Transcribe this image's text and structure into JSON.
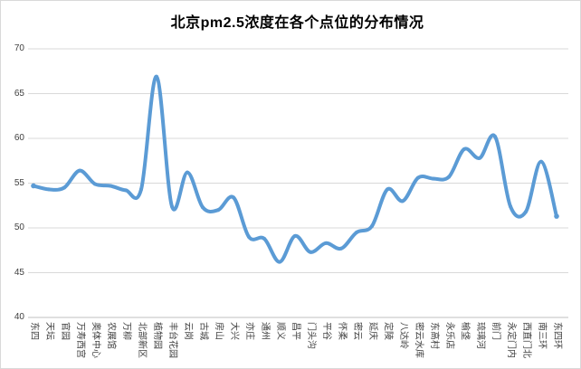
{
  "chart": {
    "title": "北京pm2.5浓度在各个点位的分布情况",
    "colors": {
      "line": "#5B9BD5",
      "gridline": "#D9D9D9",
      "axis_line": "#BFBFBF",
      "tick_text": "#404040",
      "title_text": "#000000",
      "background": "#FFFFFF"
    }
  },
  "chart_data": {
    "type": "line",
    "title": "北京pm2.5浓度在各个点位的分布情况",
    "smooth": true,
    "legend": false,
    "grid": true,
    "xlabel": "",
    "ylabel": "",
    "ylim": [
      40,
      70
    ],
    "y_tick_step": 5,
    "y_ticks": [
      40,
      45,
      50,
      55,
      60,
      65,
      70
    ],
    "categories": [
      "东四",
      "天坛",
      "官园",
      "万寿西宫",
      "奥体中心",
      "农展馆",
      "万柳",
      "北部新区",
      "植物园",
      "丰台花园",
      "云岗",
      "古城",
      "房山",
      "大兴",
      "亦庄",
      "通州",
      "顺义",
      "昌平",
      "门头沟",
      "平谷",
      "怀柔",
      "密云",
      "延庆",
      "定陵",
      "八达岭",
      "密云水库",
      "东高村",
      "永乐店",
      "榆垡",
      "琉璃河",
      "前门",
      "永定门内",
      "西直门北",
      "南三环",
      "东四环"
    ],
    "series": [
      {
        "name": "pm2.5浓度",
        "values": [
          54.7,
          54.3,
          54.5,
          56.4,
          54.9,
          54.7,
          54.2,
          54.3,
          66.9,
          52.4,
          56.2,
          52.3,
          52.0,
          53.4,
          49.0,
          48.8,
          46.2,
          49.1,
          47.3,
          48.3,
          47.7,
          49.5,
          50.2,
          54.3,
          53.0,
          55.6,
          55.5,
          55.7,
          58.8,
          57.8,
          60.2,
          52.4,
          51.8,
          57.4,
          51.3
        ]
      }
    ]
  }
}
